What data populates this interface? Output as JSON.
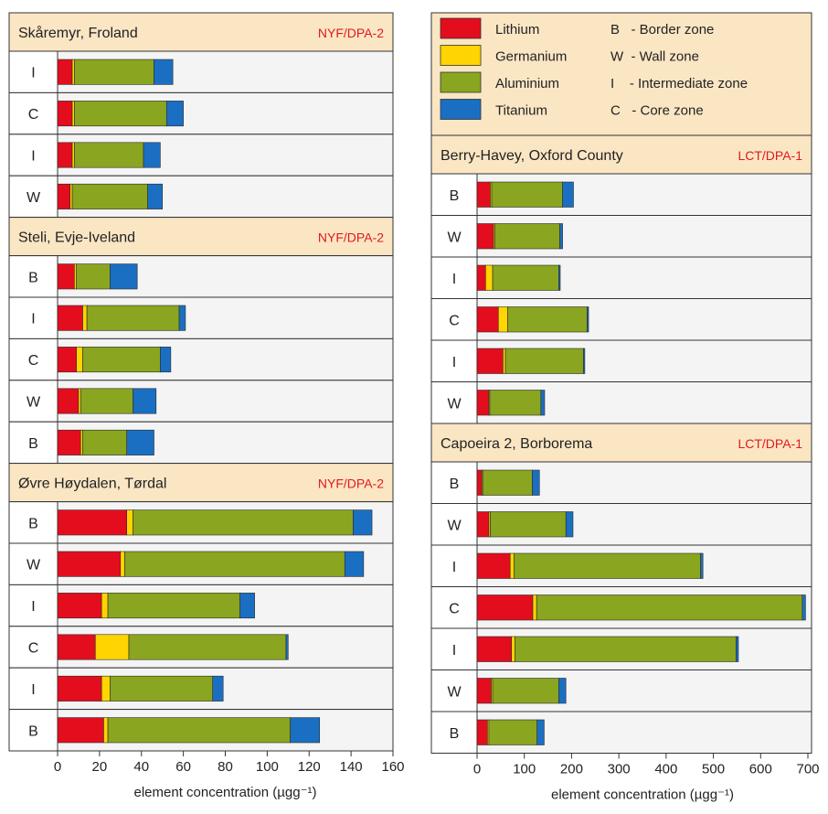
{
  "colors": {
    "lithium": "#e30d1e",
    "germanium": "#ffd400",
    "aluminium": "#8aa51f",
    "titanium": "#1a6fc2",
    "header_bg": "#fbe6c4",
    "row_bg": "#f4f4f4"
  },
  "legend": {
    "series": [
      {
        "name": "Lithium",
        "color": "#e30d1e"
      },
      {
        "name": "Germanium",
        "color": "#ffd400"
      },
      {
        "name": "Aluminium",
        "color": "#8aa51f"
      },
      {
        "name": "Titanium",
        "color": "#1a6fc2"
      }
    ],
    "zones": [
      "B   - Border zone",
      "W  - Wall zone",
      "I    - Intermediate zone",
      "C   - Core zone"
    ]
  },
  "chart_data": [
    {
      "type": "bar",
      "orientation": "horizontal",
      "stacked": true,
      "xlabel": "element concentration (µgg⁻¹)",
      "xlim": [
        0,
        160
      ],
      "xticks": [
        0,
        20,
        40,
        60,
        80,
        100,
        120,
        140,
        160
      ],
      "series_order": [
        "Lithium",
        "Germanium",
        "Aluminium",
        "Titanium"
      ],
      "groups": [
        {
          "title": "Skåremyr, Froland",
          "tag": "NYF/DPA-2",
          "rows": [
            {
              "zone": "I",
              "values": [
                7,
                1,
                38,
                9
              ]
            },
            {
              "zone": "C",
              "values": [
                7,
                1,
                44,
                8
              ]
            },
            {
              "zone": "I",
              "values": [
                7,
                1,
                33,
                8
              ]
            },
            {
              "zone": "W",
              "values": [
                6,
                1,
                36,
                7
              ]
            }
          ]
        },
        {
          "title": "Steli, Evje-Iveland",
          "tag": "NYF/DPA-2",
          "rows": [
            {
              "zone": "B",
              "values": [
                8,
                1,
                16,
                13
              ]
            },
            {
              "zone": "I",
              "values": [
                12,
                2,
                44,
                3
              ]
            },
            {
              "zone": "C",
              "values": [
                9,
                3,
                37,
                5
              ]
            },
            {
              "zone": "W",
              "values": [
                10,
                1,
                25,
                11
              ]
            },
            {
              "zone": "B",
              "values": [
                11,
                1,
                21,
                13
              ]
            }
          ]
        },
        {
          "title": "Øvre Høydalen, Tørdal",
          "tag": "NYF/DPA-2",
          "rows": [
            {
              "zone": "B",
              "values": [
                33,
                3,
                105,
                9
              ]
            },
            {
              "zone": "W",
              "values": [
                30,
                2,
                105,
                9
              ]
            },
            {
              "zone": "I",
              "values": [
                21,
                3,
                63,
                7
              ]
            },
            {
              "zone": "C",
              "values": [
                18,
                16,
                75,
                1
              ]
            },
            {
              "zone": "I",
              "values": [
                21,
                4,
                49,
                5
              ]
            },
            {
              "zone": "B",
              "values": [
                22,
                2,
                87,
                14
              ]
            }
          ]
        }
      ]
    },
    {
      "type": "bar",
      "orientation": "horizontal",
      "stacked": true,
      "xlabel": "element concentration (µgg⁻¹)",
      "xlim": [
        0,
        700
      ],
      "xticks": [
        0,
        100,
        200,
        300,
        400,
        500,
        600,
        700
      ],
      "series_order": [
        "Lithium",
        "Germanium",
        "Aluminium",
        "Titanium"
      ],
      "groups": [
        {
          "title": "Berry-Havey, Oxford County",
          "tag": "LCT/DPA-1",
          "rows": [
            {
              "zone": "B",
              "values": [
                28,
                3,
                150,
                23
              ]
            },
            {
              "zone": "W",
              "values": [
                35,
                3,
                137,
                6
              ]
            },
            {
              "zone": "I",
              "values": [
                18,
                15,
                140,
                3
              ]
            },
            {
              "zone": "C",
              "values": [
                45,
                20,
                168,
                3
              ]
            },
            {
              "zone": "I",
              "values": [
                55,
                5,
                165,
                3
              ]
            },
            {
              "zone": "W",
              "values": [
                25,
                2,
                108,
                8
              ]
            }
          ]
        },
        {
          "title": "Capoeira 2, Borborema",
          "tag": "LCT/DPA-1",
          "rows": [
            {
              "zone": "B",
              "values": [
                10,
                2,
                105,
                15
              ]
            },
            {
              "zone": "W",
              "values": [
                25,
                3,
                160,
                15
              ]
            },
            {
              "zone": "I",
              "values": [
                70,
                8,
                395,
                5
              ]
            },
            {
              "zone": "C",
              "values": [
                118,
                8,
                562,
                7
              ]
            },
            {
              "zone": "I",
              "values": [
                73,
                7,
                468,
                5
              ]
            },
            {
              "zone": "W",
              "values": [
                30,
                3,
                140,
                15
              ]
            },
            {
              "zone": "B",
              "values": [
                22,
                3,
                102,
                15
              ]
            }
          ]
        }
      ]
    }
  ]
}
